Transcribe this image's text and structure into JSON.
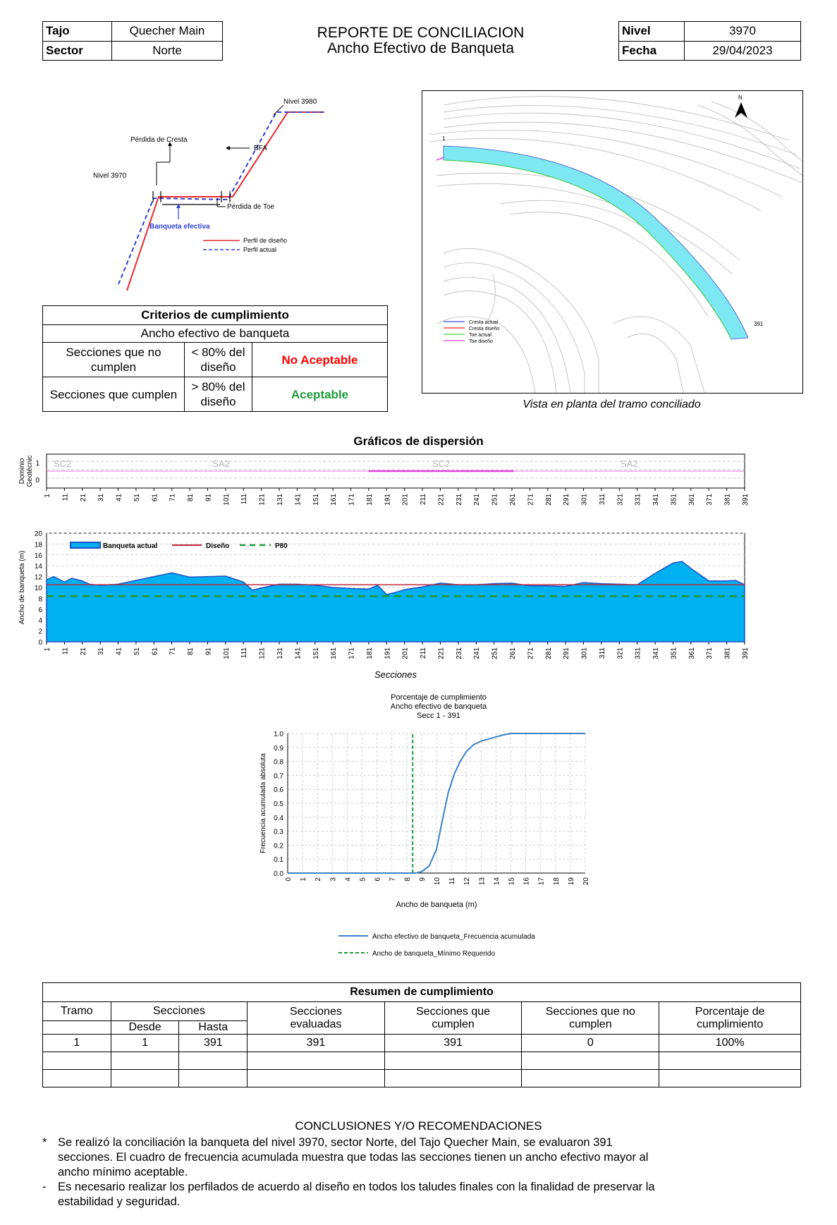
{
  "header": {
    "tajo_label": "Tajo",
    "tajo_value": "Quecher Main",
    "sector_label": "Sector",
    "sector_value": "Norte",
    "title_line1": "REPORTE DE CONCILIACION",
    "title_line2": "Ancho Efectivo de Banqueta",
    "nivel_label": "Nivel",
    "nivel_value": "3970",
    "fecha_label": "Fecha",
    "fecha_value": "29/04/2023"
  },
  "profile_diagram": {
    "nivel_top": "Nivel 3980",
    "perdida_cresta": "Pérdida de Cresta",
    "bfa": "BFA",
    "nivel_left": "Nivel 3970",
    "perdida_toe": "Pérdida de Toe",
    "banqueta_efectiva": "Banqueta efectiva",
    "legend_design": "Perfil de diseño",
    "legend_actual": "Perfil actual",
    "color_design": "#e8282e",
    "color_actual": "#2c3fd1"
  },
  "criteria": {
    "title": "Criterios de cumplimiento",
    "subtitle": "Ancho efectivo de banqueta",
    "rows": [
      {
        "label": "Secciones que no cumplen",
        "cond": "< 80% del diseño",
        "result": "No Aceptable"
      },
      {
        "label": "Secciones que cumplen",
        "cond": "> 80% del diseño",
        "result": "Aceptable"
      }
    ]
  },
  "map": {
    "legend": [
      "Cresta actual",
      "Cresta diseño",
      "Toe actual",
      "Toe diseño"
    ],
    "legend_colors": [
      "#3b4cd6",
      "#e8282e",
      "#3ad13a",
      "#e040e0"
    ],
    "start_label": "1",
    "end_label": "391",
    "north_label": "N",
    "bench_color": "#7de8f2",
    "caption": "Vista en planta del tramo conciliado"
  },
  "scatter_title": "Gráficos de dispersión",
  "domain_chart": {
    "ylabel_1": "Dominio",
    "ylabel_2": "Geotécnic",
    "y_tick_labels": [
      "1",
      "0"
    ],
    "x_tick_labels": [
      "1",
      "11",
      "21",
      "31",
      "41",
      "51",
      "61",
      "71",
      "81",
      "91",
      "101",
      "111",
      "121",
      "131",
      "141",
      "151",
      "161",
      "171",
      "181",
      "191",
      "201",
      "211",
      "221",
      "231",
      "241",
      "251",
      "261",
      "271",
      "281",
      "291",
      "301",
      "311",
      "321",
      "331",
      "341",
      "351",
      "361",
      "371",
      "381",
      "391"
    ],
    "segments": [
      {
        "label": "SC2",
        "from": 1,
        "to": 16
      },
      {
        "label": "SA2",
        "from": 16,
        "to": 181
      },
      {
        "label": "SC2",
        "from": 181,
        "to": 262
      },
      {
        "label": "SA2",
        "from": 262,
        "to": 391
      }
    ],
    "color_line": "#e040e0"
  },
  "chart_data": [
    {
      "type": "area",
      "ylabel": "Ancho de banqueta (m)",
      "xlabel": "Secciones",
      "ylim": [
        0,
        20
      ],
      "y_ticks": [
        "0",
        "2",
        "4",
        "6",
        "8",
        "10",
        "12",
        "14",
        "16",
        "18",
        "20"
      ],
      "x_tick_labels": [
        "1",
        "11",
        "21",
        "31",
        "41",
        "51",
        "61",
        "71",
        "81",
        "91",
        "101",
        "111",
        "121",
        "131",
        "141",
        "151",
        "161",
        "171",
        "181",
        "191",
        "201",
        "211",
        "221",
        "231",
        "241",
        "251",
        "261",
        "271",
        "281",
        "291",
        "301",
        "311",
        "321",
        "331",
        "341",
        "351",
        "361",
        "371",
        "381",
        "391"
      ],
      "legend": [
        "Banqueta actual",
        "Diseño",
        "P80"
      ],
      "colors": {
        "actual_fill": "#00b0f0",
        "actual_edge": "#1f4fc8",
        "design": "#c0283a",
        "p80": "#1f9b3a"
      },
      "x": [
        1,
        5,
        11,
        15,
        21,
        25,
        31,
        41,
        51,
        61,
        71,
        81,
        91,
        101,
        111,
        116,
        121,
        131,
        141,
        151,
        161,
        171,
        181,
        186,
        191,
        196,
        201,
        211,
        221,
        231,
        241,
        251,
        261,
        271,
        281,
        291,
        301,
        311,
        321,
        331,
        341,
        351,
        356,
        361,
        371,
        381,
        386,
        391
      ],
      "series": [
        {
          "name": "Banqueta actual",
          "values": [
            11.4,
            12.0,
            11.0,
            11.7,
            11.2,
            10.6,
            10.4,
            10.6,
            11.3,
            12.0,
            12.7,
            11.9,
            12.0,
            12.1,
            11.0,
            9.5,
            9.9,
            10.6,
            10.6,
            10.4,
            10.0,
            9.8,
            9.7,
            10.4,
            8.7,
            9.1,
            9.6,
            10.1,
            10.8,
            10.5,
            10.5,
            10.7,
            10.8,
            10.3,
            10.3,
            10.2,
            10.9,
            10.7,
            10.6,
            10.5,
            12.6,
            14.5,
            14.8,
            13.5,
            11.2,
            11.2,
            11.3,
            10.5
          ]
        },
        {
          "name": "Diseño",
          "values": [
            10.5,
            10.5,
            10.5,
            10.5,
            10.5,
            10.5,
            10.5,
            10.5,
            10.5,
            10.5,
            10.5,
            10.5,
            10.5,
            10.5,
            10.5,
            10.5,
            10.5,
            10.5,
            10.5,
            10.5,
            10.5,
            10.5,
            10.5,
            10.5,
            10.5,
            10.5,
            10.5,
            10.5,
            10.5,
            10.5,
            10.5,
            10.5,
            10.5,
            10.5,
            10.5,
            10.5,
            10.5,
            10.5,
            10.5,
            10.5,
            10.5,
            10.5,
            10.5,
            10.5,
            10.5,
            10.5,
            10.5,
            10.5
          ]
        },
        {
          "name": "P80",
          "values": [
            8.4,
            8.4,
            8.4,
            8.4,
            8.4,
            8.4,
            8.4,
            8.4,
            8.4,
            8.4,
            8.4,
            8.4,
            8.4,
            8.4,
            8.4,
            8.4,
            8.4,
            8.4,
            8.4,
            8.4,
            8.4,
            8.4,
            8.4,
            8.4,
            8.4,
            8.4,
            8.4,
            8.4,
            8.4,
            8.4,
            8.4,
            8.4,
            8.4,
            8.4,
            8.4,
            8.4,
            8.4,
            8.4,
            8.4,
            8.4,
            8.4,
            8.4,
            8.4,
            8.4,
            8.4,
            8.4,
            8.4,
            8.4
          ]
        }
      ]
    },
    {
      "type": "line",
      "title_lines": [
        "Porcentaje de cumplimiento",
        "Ancho efectivo de banqueta",
        "Secc 1 - 391"
      ],
      "xlabel": "Ancho de banqueta (m)",
      "ylabel": "Frecuencia acumulada absoluta",
      "xlim": [
        0,
        20
      ],
      "ylim": [
        0,
        1
      ],
      "y_ticks": [
        "0.0",
        "0.1",
        "0.2",
        "0.3",
        "0.4",
        "0.5",
        "0.6",
        "0.7",
        "0.8",
        "0.9",
        "1.0"
      ],
      "x_ticks": [
        "0",
        "1",
        "2",
        "3",
        "4",
        "5",
        "6",
        "7",
        "8",
        "9",
        "10",
        "11",
        "12",
        "13",
        "14",
        "15",
        "16",
        "17",
        "18",
        "19",
        "20"
      ],
      "colors": {
        "cdf": "#3d7fc9",
        "min": "#1f9b3a"
      },
      "series": [
        {
          "name": "Ancho efectivo de banqueta_Frecuencia acumulada",
          "x": [
            0,
            8.6,
            9.0,
            9.5,
            10.0,
            10.4,
            10.8,
            11.2,
            11.6,
            12.0,
            12.5,
            13.0,
            13.5,
            14.0,
            14.5,
            15.0,
            20
          ],
          "y": [
            0,
            0,
            0.01,
            0.05,
            0.17,
            0.38,
            0.58,
            0.71,
            0.8,
            0.87,
            0.92,
            0.945,
            0.96,
            0.975,
            0.99,
            1.0,
            1.0
          ]
        },
        {
          "name": "Ancho de banqueta_Mínimo Requerido",
          "x": [
            8.4,
            8.4
          ],
          "y": [
            0,
            1
          ]
        }
      ]
    }
  ],
  "summary": {
    "title": "Resumen de cumplimiento",
    "col_tramo": "Tramo",
    "col_secciones": "Secciones",
    "col_desde": "Desde",
    "col_hasta": "Hasta",
    "col_evaluadas": "Secciones evaluadas",
    "col_cumplen": "Secciones que cumplen",
    "col_nocumplen": "Secciones que no cumplen",
    "col_porcentaje": "Porcentaje de cumplimiento",
    "rows": [
      {
        "tramo": "1",
        "desde": "1",
        "hasta": "391",
        "evaluadas": "391",
        "cumplen": "391",
        "nocumplen": "0",
        "porcentaje": "100%"
      }
    ]
  },
  "conclusions": {
    "title": "CONCLUSIONES Y/O RECOMENDACIONES",
    "items": [
      {
        "bullet": "*",
        "text_lines": [
          "Se realizó la conciliación la banqueta del nivel 3970, sector Norte, del Tajo Quecher Main, se evaluaron 391",
          "secciones. El cuadro de frecuencia acumulada muestra que todas las secciones tienen un ancho efectivo mayor al",
          "ancho mínimo aceptable."
        ]
      },
      {
        "bullet": "-",
        "text_lines": [
          "Es necesario realizar los perfilados de acuerdo al diseño en todos los taludes finales con la finalidad de preservar la",
          "estabilidad y seguridad."
        ]
      }
    ]
  }
}
